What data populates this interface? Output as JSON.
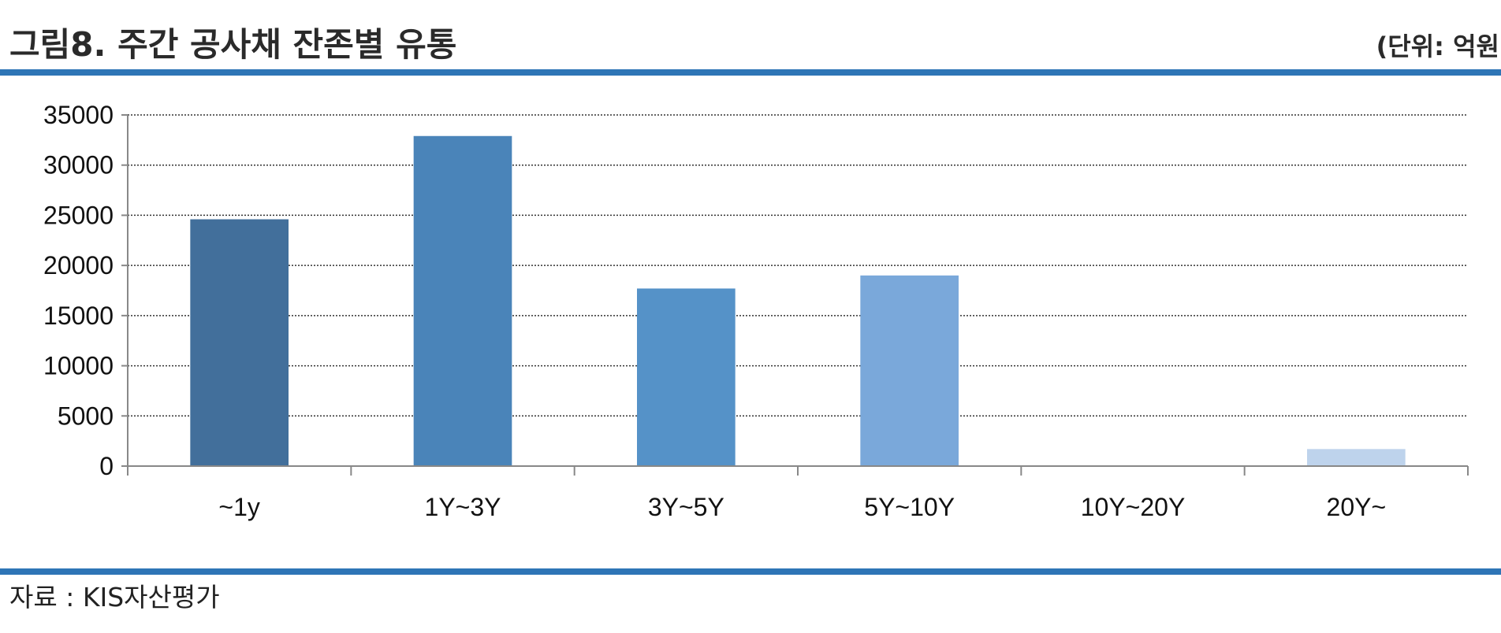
{
  "header": {
    "title": "그림8. 주간 공사채 잔존별 유통",
    "unit": "(단위: 억원"
  },
  "footer": {
    "source": "자료 : KIS자산평가"
  },
  "colors": {
    "rule": "#2e75b6",
    "bars": [
      "#426f9b",
      "#4a84b9",
      "#5592c8",
      "#7aa8da",
      "#9ebde3",
      "#bed3ec"
    ]
  },
  "chart_data": {
    "type": "bar",
    "categories": [
      "~1y",
      "1Y~3Y",
      "3Y~5Y",
      "5Y~10Y",
      "10Y~20Y",
      "20Y~"
    ],
    "values": [
      24600,
      32900,
      17700,
      19000,
      0,
      1700
    ],
    "xlabel": "",
    "ylabel": "",
    "ylim": [
      0,
      35000
    ],
    "yticks": [
      0,
      5000,
      10000,
      15000,
      20000,
      25000,
      30000,
      35000
    ],
    "grid": true,
    "legend": "none"
  }
}
